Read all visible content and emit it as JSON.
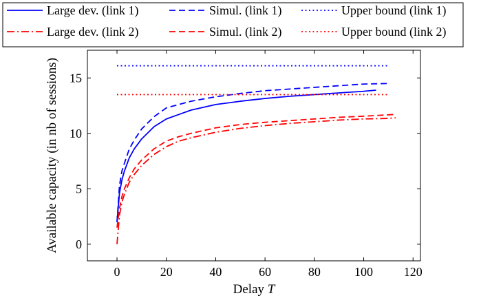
{
  "chart_data": {
    "type": "line",
    "title": "",
    "xlabel": "Delay",
    "xlabel_var": "T",
    "ylabel": "Available capacity (in nb of sessions)",
    "xlim": [
      -12,
      123
    ],
    "ylim": [
      -1.5,
      17.5
    ],
    "xticks": [
      0,
      20,
      40,
      60,
      80,
      100,
      120
    ],
    "yticks": [
      0,
      5,
      10,
      15
    ],
    "xtick_labels": [
      "0",
      "20",
      "40",
      "60",
      "80",
      "100",
      "120"
    ],
    "ytick_labels": [
      "0",
      "5",
      "10",
      "15"
    ],
    "grid": false,
    "legend_position": "top, outside plot, 3 columns",
    "series": [
      {
        "name": "Large dev. (link 1)",
        "color": "#0000ff",
        "style": "solid",
        "x": [
          0,
          1,
          2,
          3,
          5,
          7,
          10,
          15,
          20,
          25,
          30,
          40,
          50,
          60,
          70,
          80,
          90,
          100,
          105
        ],
        "y": [
          2.0,
          4.6,
          5.8,
          6.6,
          7.8,
          8.6,
          9.5,
          10.6,
          11.3,
          11.7,
          12.1,
          12.6,
          12.9,
          13.15,
          13.35,
          13.5,
          13.65,
          13.8,
          13.9
        ]
      },
      {
        "name": "Simul. (link 1)",
        "color": "#0000ff",
        "style": "dashed",
        "x": [
          0,
          1,
          2,
          3,
          5,
          7,
          10,
          15,
          20,
          25,
          30,
          40,
          50,
          60,
          70,
          80,
          90,
          100,
          110
        ],
        "y": [
          2.0,
          5.3,
          6.6,
          7.3,
          8.6,
          9.4,
          10.4,
          11.5,
          12.3,
          12.6,
          12.9,
          13.3,
          13.6,
          13.85,
          14.0,
          14.15,
          14.3,
          14.45,
          14.5
        ]
      },
      {
        "name": "Upper bound (link 1)",
        "color": "#0000ff",
        "style": "dotted",
        "x": [
          0,
          110
        ],
        "y": [
          16.1,
          16.1
        ]
      },
      {
        "name": "Large dev. (link 2)",
        "color": "#ff0000",
        "style": "dashdot",
        "x": [
          0,
          1,
          2,
          3,
          5,
          7,
          10,
          15,
          20,
          25,
          30,
          40,
          50,
          60,
          70,
          80,
          90,
          100,
          110,
          113
        ],
        "y": [
          0.0,
          2.6,
          3.8,
          4.5,
          5.6,
          6.3,
          7.1,
          8.1,
          8.8,
          9.3,
          9.6,
          10.1,
          10.45,
          10.7,
          10.9,
          11.05,
          11.2,
          11.3,
          11.35,
          11.4
        ]
      },
      {
        "name": "Simul. (link 2)",
        "color": "#ff0000",
        "style": "dashed",
        "x": [
          0,
          1,
          2,
          3,
          5,
          7,
          10,
          15,
          20,
          25,
          30,
          40,
          50,
          60,
          70,
          80,
          90,
          100,
          112
        ],
        "y": [
          1.5,
          3.2,
          4.3,
          5.0,
          6.0,
          6.8,
          7.6,
          8.6,
          9.3,
          9.7,
          10.0,
          10.5,
          10.8,
          11.0,
          11.15,
          11.3,
          11.45,
          11.55,
          11.7
        ]
      },
      {
        "name": "Upper bound (link 2)",
        "color": "#ff0000",
        "style": "dotted",
        "x": [
          0,
          110
        ],
        "y": [
          13.5,
          13.5
        ]
      }
    ]
  }
}
